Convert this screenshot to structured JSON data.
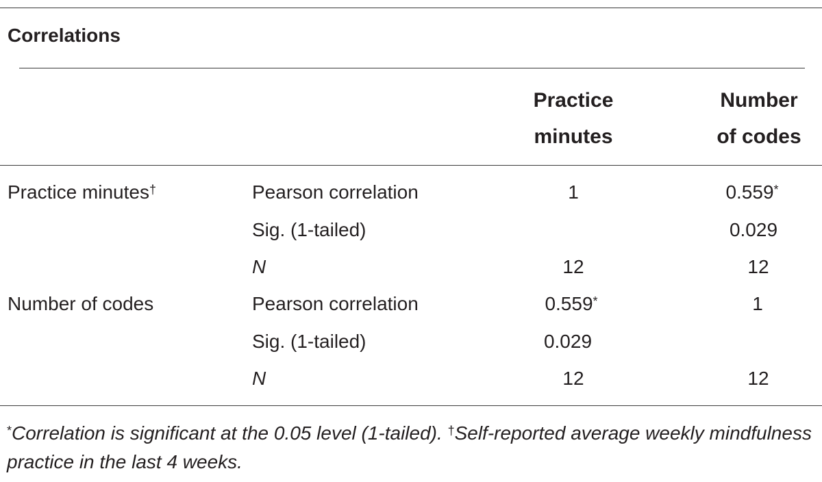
{
  "table": {
    "title": "Correlations",
    "columns": [
      {
        "line1": "Practice",
        "line2": "minutes"
      },
      {
        "line1": "Number",
        "line2": "of codes"
      }
    ],
    "groups": [
      {
        "label": "Practice minutes",
        "label_mark": "†",
        "rows": [
          {
            "stat": "Pearson correlation",
            "c1": "1",
            "c1_mark": "",
            "c2": "0.559",
            "c2_mark": "*"
          },
          {
            "stat": "Sig. (1-tailed)",
            "c1": "",
            "c1_mark": "",
            "c2": "0.029",
            "c2_mark": ""
          },
          {
            "stat": "N",
            "c1": "12",
            "c1_mark": "",
            "c2": "12",
            "c2_mark": ""
          }
        ]
      },
      {
        "label": "Number of codes",
        "label_mark": "",
        "rows": [
          {
            "stat": "Pearson correlation",
            "c1": "0.559",
            "c1_mark": "*",
            "c2": "1",
            "c2_mark": ""
          },
          {
            "stat": "Sig. (1-tailed)",
            "c1": "0.029",
            "c1_mark": "",
            "c2": "",
            "c2_mark": ""
          },
          {
            "stat": "N",
            "c1": "12",
            "c1_mark": "",
            "c2": "12",
            "c2_mark": ""
          }
        ]
      }
    ]
  },
  "footnote": {
    "mark1": "*",
    "text1": "Correlation is significant at the 0.05 level (1-tailed). ",
    "mark2": "†",
    "text2": "Self-reported average weekly mindfulness practice in the last 4 weeks."
  }
}
